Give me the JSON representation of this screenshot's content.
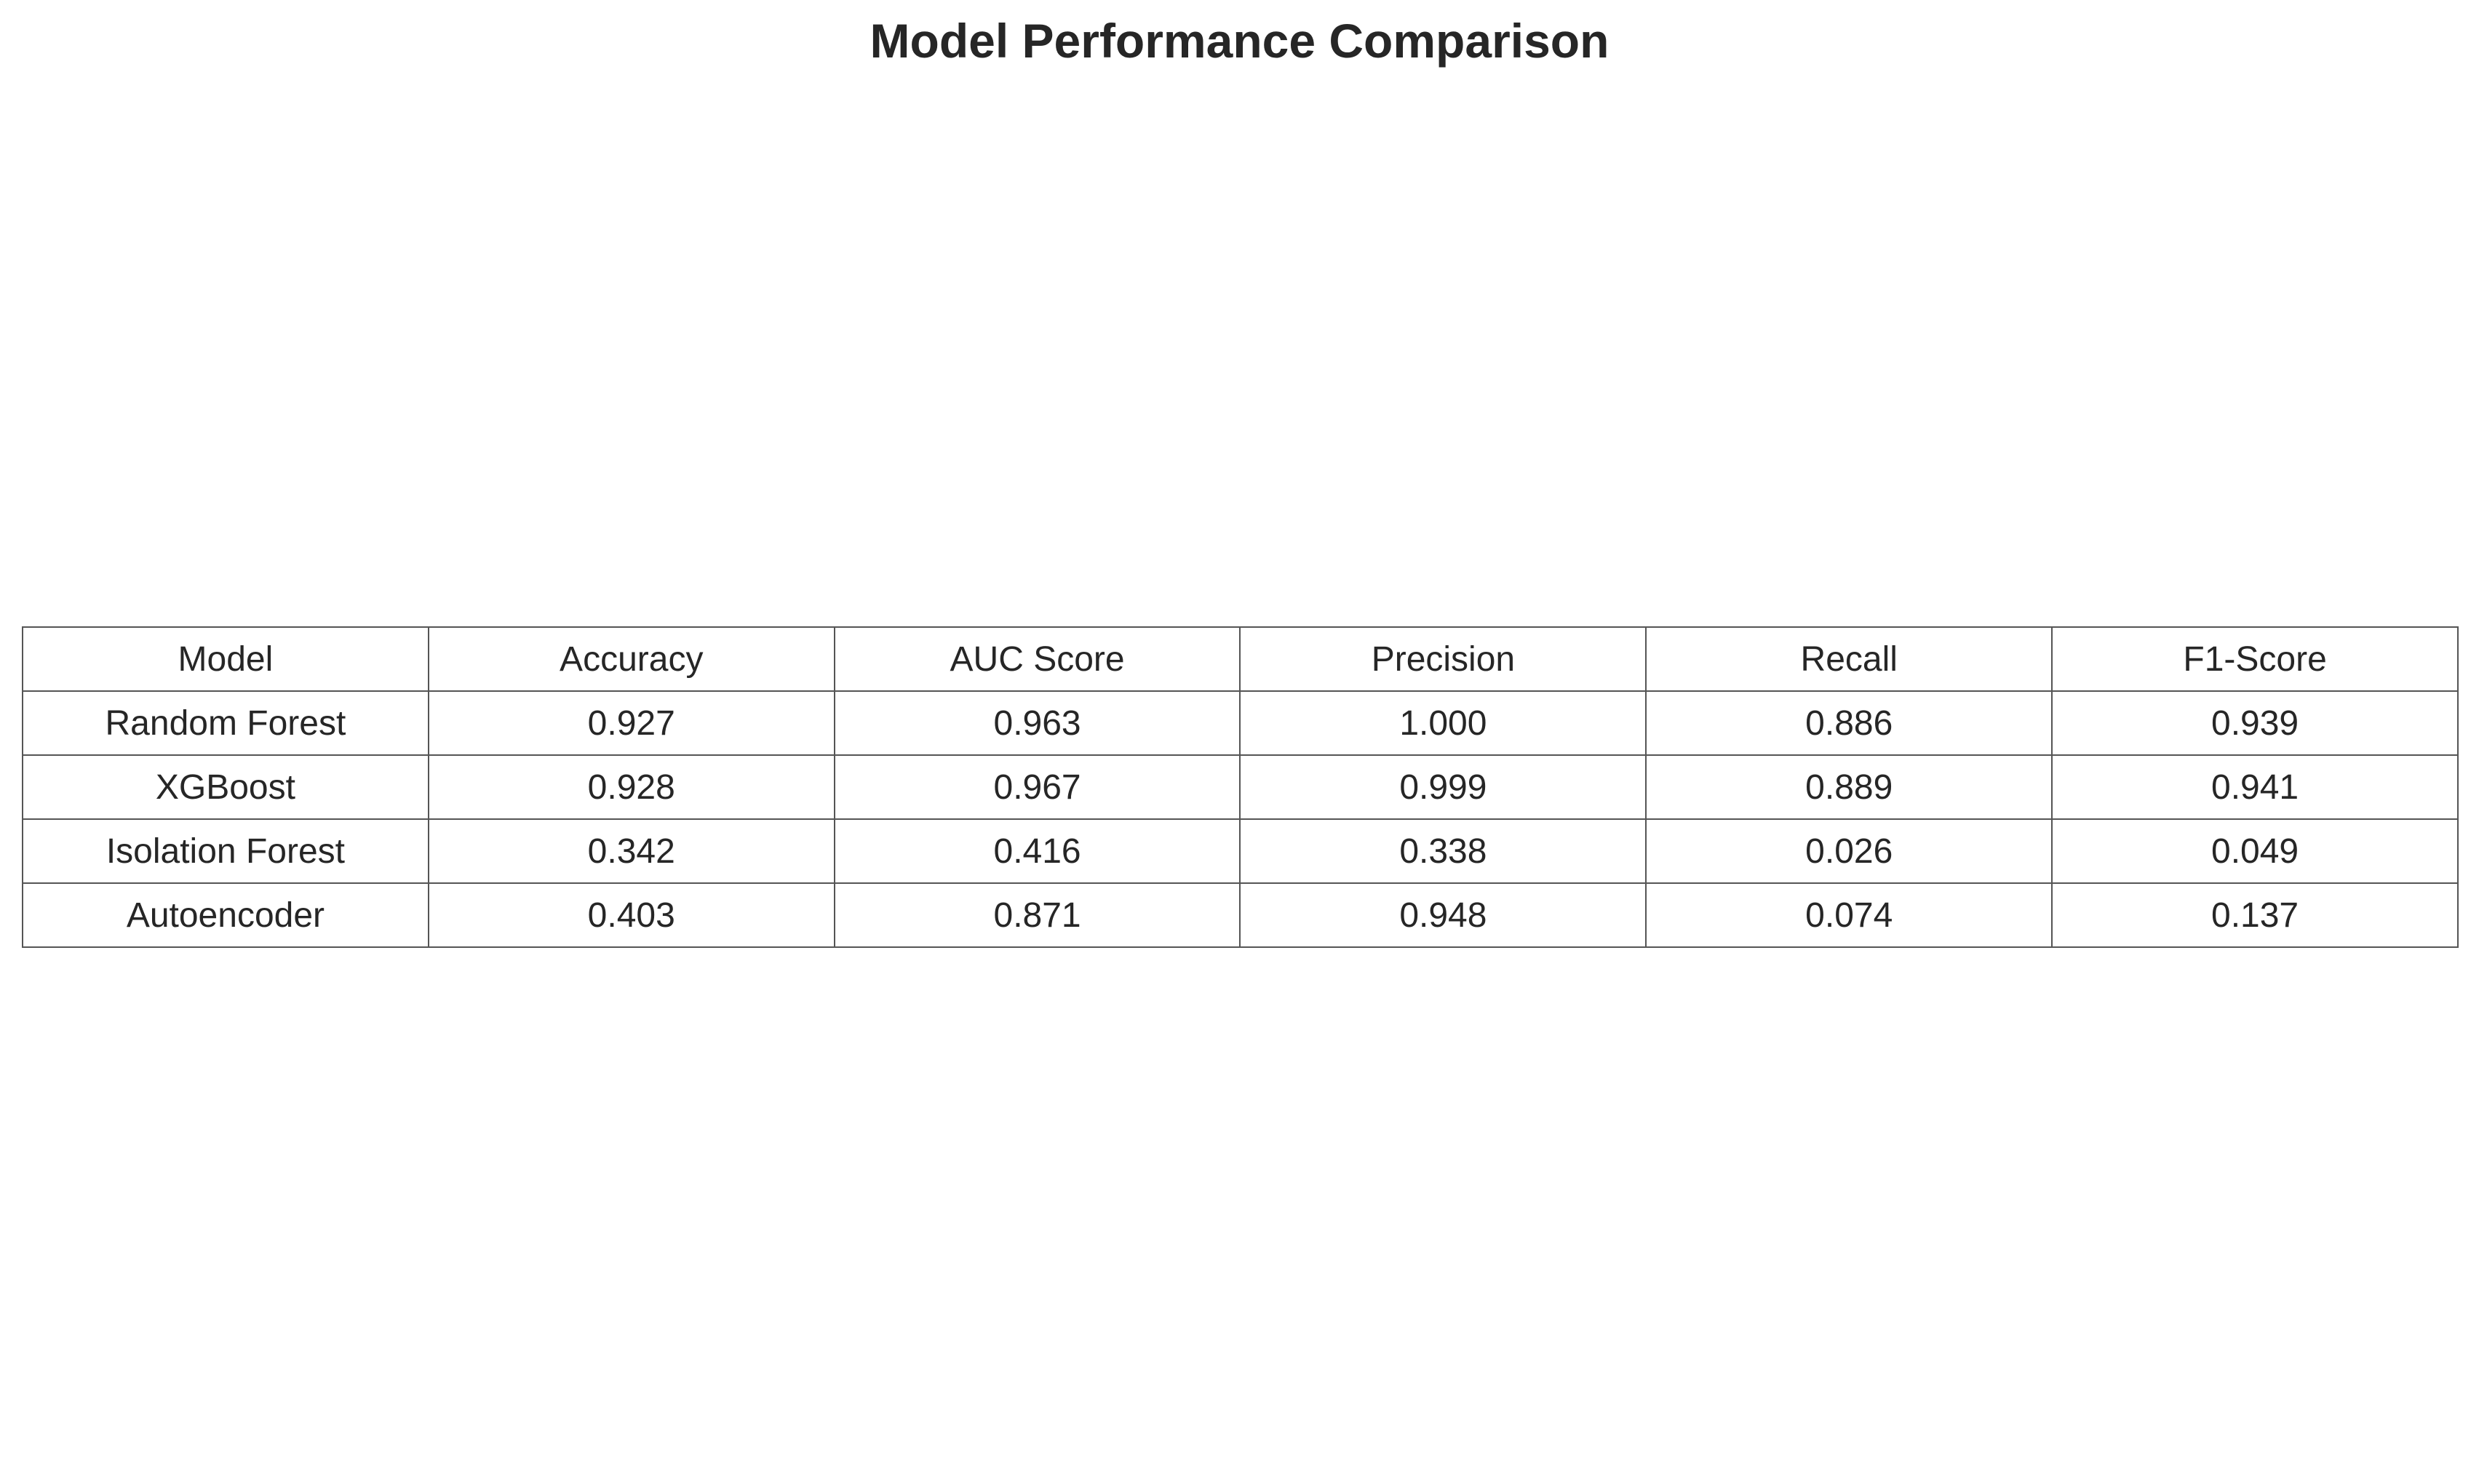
{
  "chart_data": {
    "type": "table",
    "title": "Model Performance Comparison",
    "columns": [
      "Model",
      "Accuracy",
      "AUC Score",
      "Precision",
      "Recall",
      "F1-Score"
    ],
    "rows": [
      [
        "Random Forest",
        "0.927",
        "0.963",
        "1.000",
        "0.886",
        "0.939"
      ],
      [
        "XGBoost",
        "0.928",
        "0.967",
        "0.999",
        "0.889",
        "0.941"
      ],
      [
        "Isolation Forest",
        "0.342",
        "0.416",
        "0.338",
        "0.026",
        "0.049"
      ],
      [
        "Autoencoder",
        "0.403",
        "0.871",
        "0.948",
        "0.074",
        "0.137"
      ]
    ]
  }
}
